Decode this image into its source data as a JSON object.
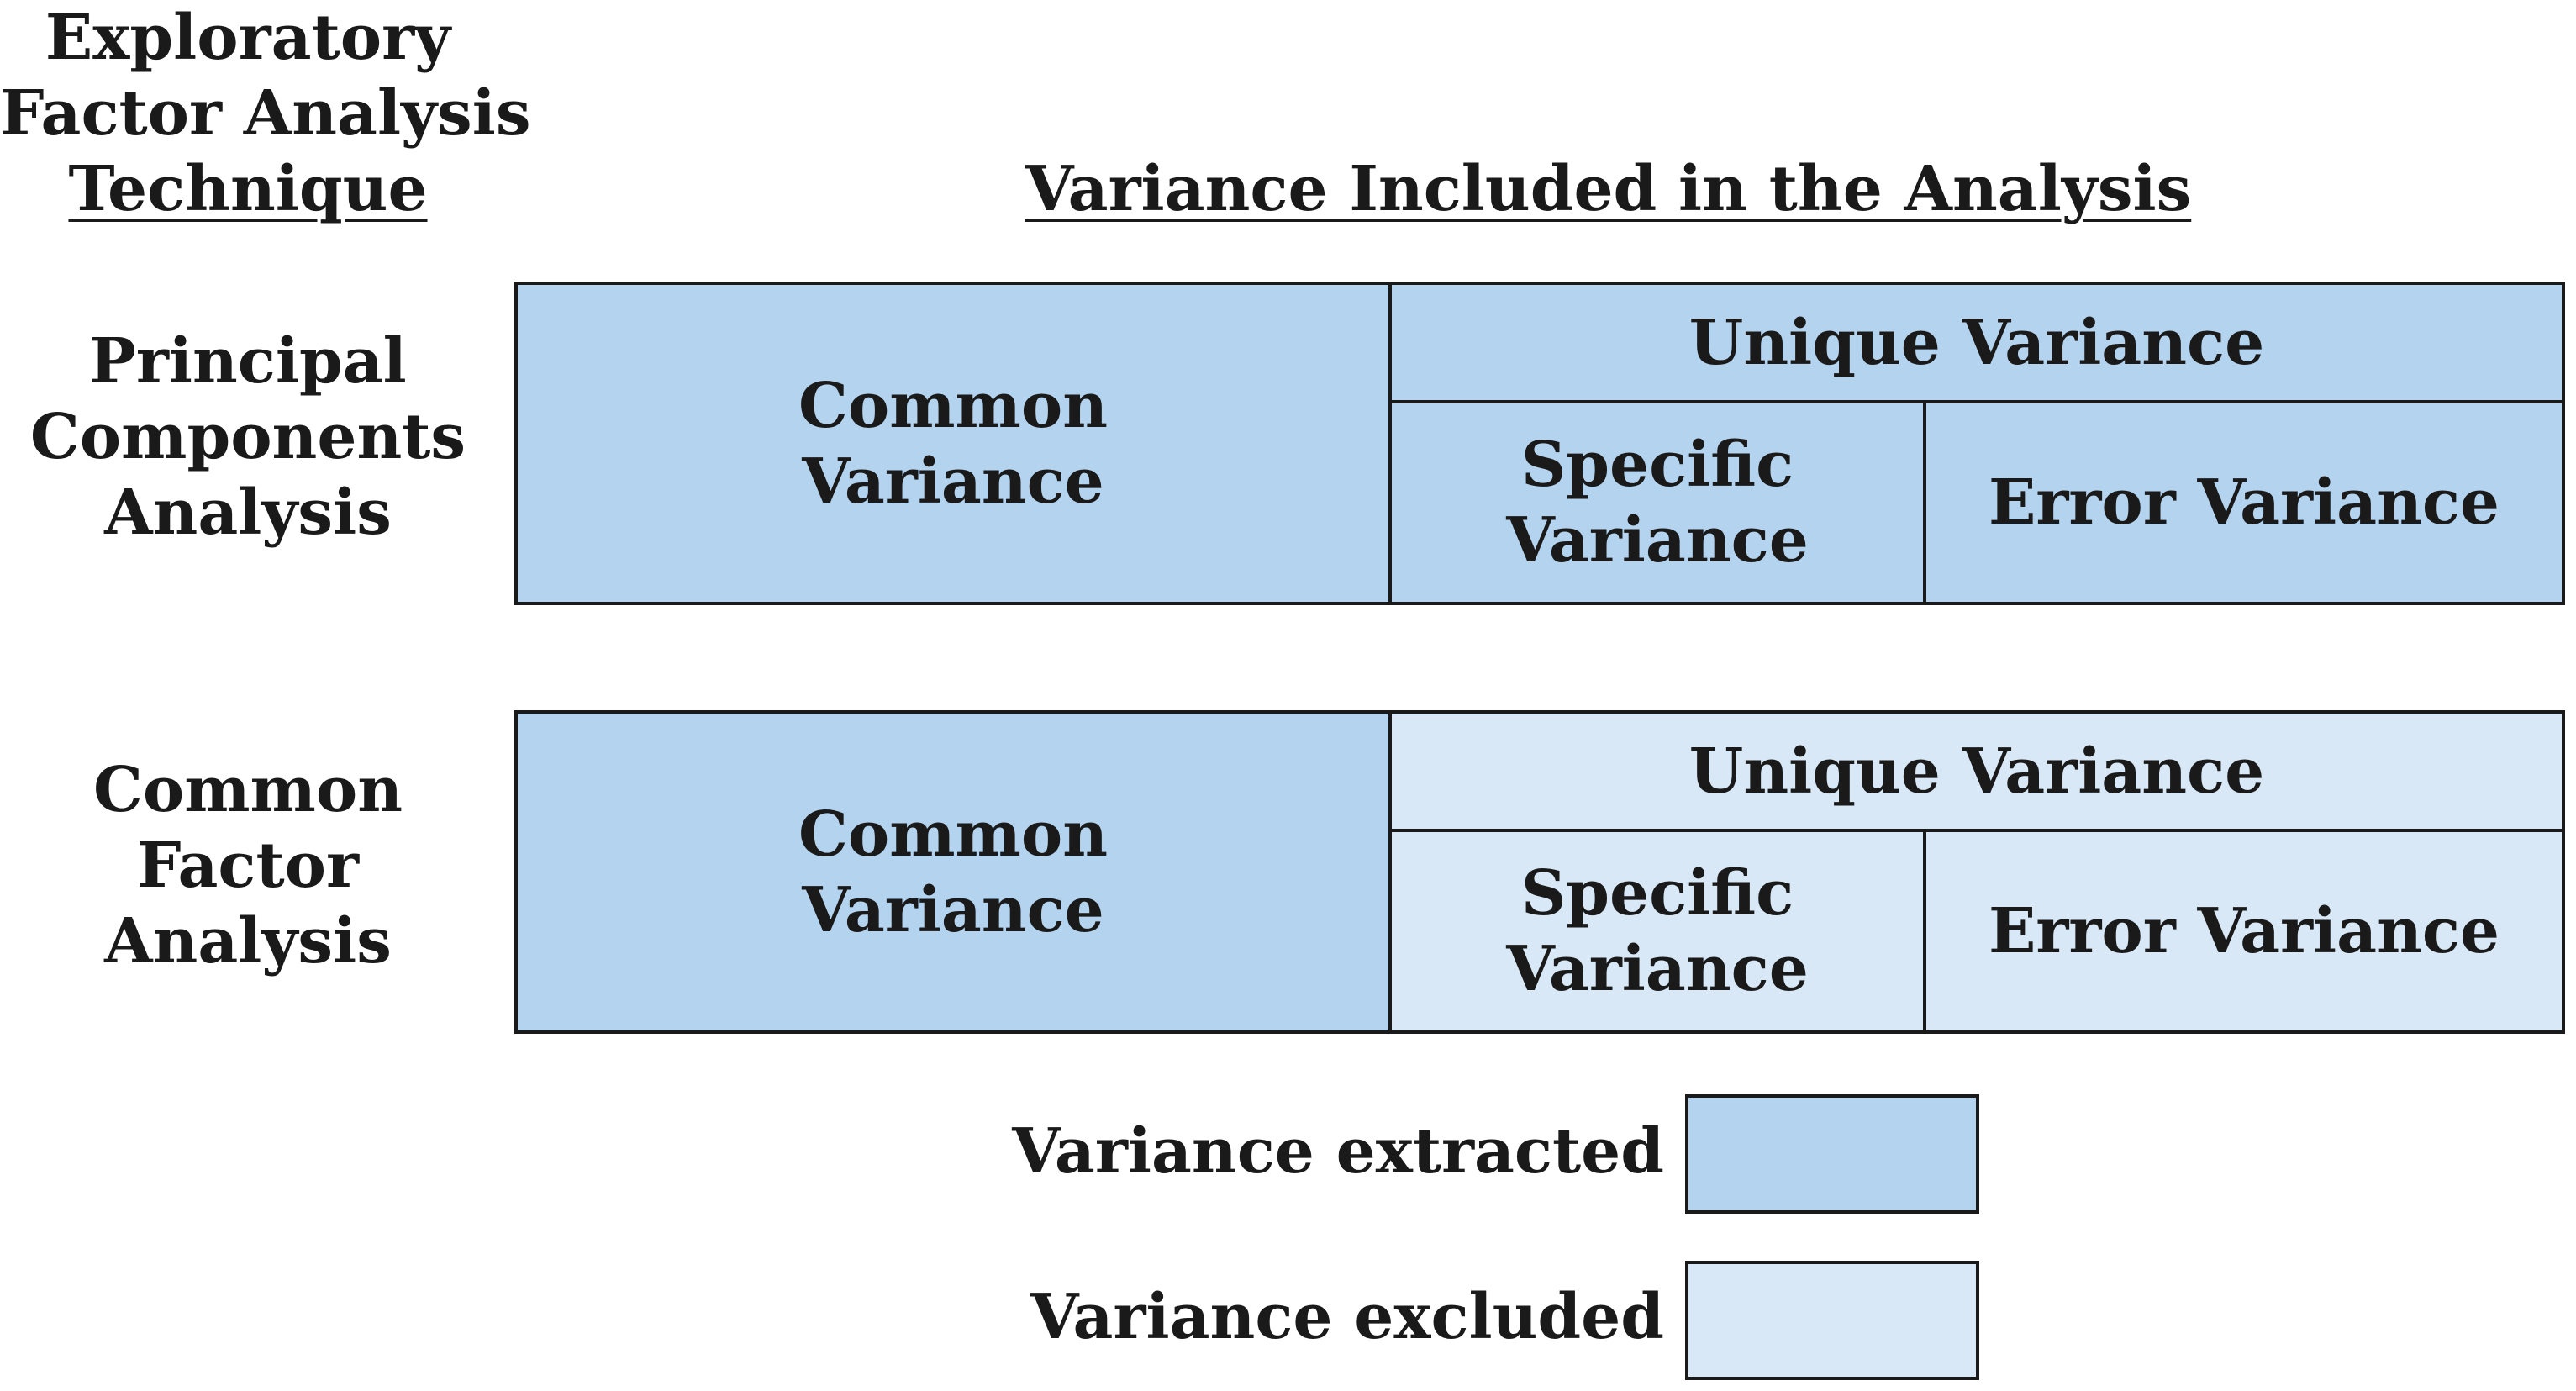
{
  "headers": {
    "technique_lines": [
      "Exploratory",
      "Factor Analysis",
      "Technique"
    ],
    "variance_included": "Variance Included in the Analysis"
  },
  "rows": [
    {
      "label_lines": [
        "Principal",
        "Components",
        "Analysis"
      ],
      "common": [
        "Common",
        "Variance"
      ],
      "unique": "Unique Variance",
      "specific": [
        "Specific",
        "Variance"
      ],
      "error": "Error Variance"
    },
    {
      "label_lines": [
        "Common",
        "Factor",
        "Analysis"
      ],
      "common": [
        "Common",
        "Variance"
      ],
      "unique": "Unique Variance",
      "specific": [
        "Specific",
        "Variance"
      ],
      "error": "Error Variance"
    }
  ],
  "legend": {
    "extracted": "Variance extracted",
    "excluded": "Variance excluded"
  },
  "colors": {
    "extracted": "#b4d3ee",
    "excluded": "#d8e8f6",
    "border": "#1a1a1a"
  }
}
